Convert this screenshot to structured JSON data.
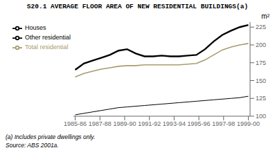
{
  "chart_data": {
    "type": "line",
    "title": "S20.1  AVERAGE FLOOR AREA OF NEW RESIDENTIAL BUILDINGS(a)",
    "y_label": "m²",
    "annotations": [
      "(a) Includes private dwellings only.",
      "Source: ABS 2001a."
    ],
    "x": [
      0,
      1,
      2,
      3,
      4,
      5,
      6,
      7,
      8,
      9,
      10,
      11,
      12,
      13,
      14,
      15,
      16,
      17,
      18,
      19,
      20
    ],
    "xlim": [
      -0.2,
      20.2
    ],
    "xticks": [
      {
        "value": 0,
        "label": "1985-86"
      },
      {
        "value": 2.857142857142857,
        "label": "1987-88"
      },
      {
        "value": 5.714285714285714,
        "label": "1989-90"
      },
      {
        "value": 8.571428571428571,
        "label": "1991-92"
      },
      {
        "value": 11.428571428571429,
        "label": "1993-94"
      },
      {
        "value": 14.285714285714286,
        "label": "1995-96"
      },
      {
        "value": 17.142857142857142,
        "label": "1997-98"
      },
      {
        "value": 20,
        "label": "1999-00"
      }
    ],
    "ylim": [
      100,
      232
    ],
    "yticks": [
      100,
      125,
      150,
      175,
      200,
      225
    ],
    "series": [
      {
        "name": "Houses",
        "color": "#000000",
        "values": [
          165,
          174,
          178,
          182,
          186,
          192,
          194,
          188,
          184,
          184,
          185,
          184,
          184,
          185,
          186,
          194,
          205,
          214,
          220,
          225,
          228
        ]
      },
      {
        "name": "Other residential",
        "color": "#000000",
        "values": [
          102,
          104,
          106,
          108,
          110,
          112,
          113,
          114,
          115,
          116,
          117,
          118,
          119,
          120,
          121,
          122,
          123,
          124,
          125,
          126,
          128
        ]
      },
      {
        "name": "Total residential",
        "color": "#a89b6e",
        "values": [
          155,
          160,
          163,
          166,
          168,
          170,
          171,
          171,
          172,
          172,
          172,
          172,
          172,
          173,
          174,
          179,
          186,
          193,
          197,
          200,
          202
        ]
      }
    ],
    "legend": "upper left",
    "grid": false
  }
}
